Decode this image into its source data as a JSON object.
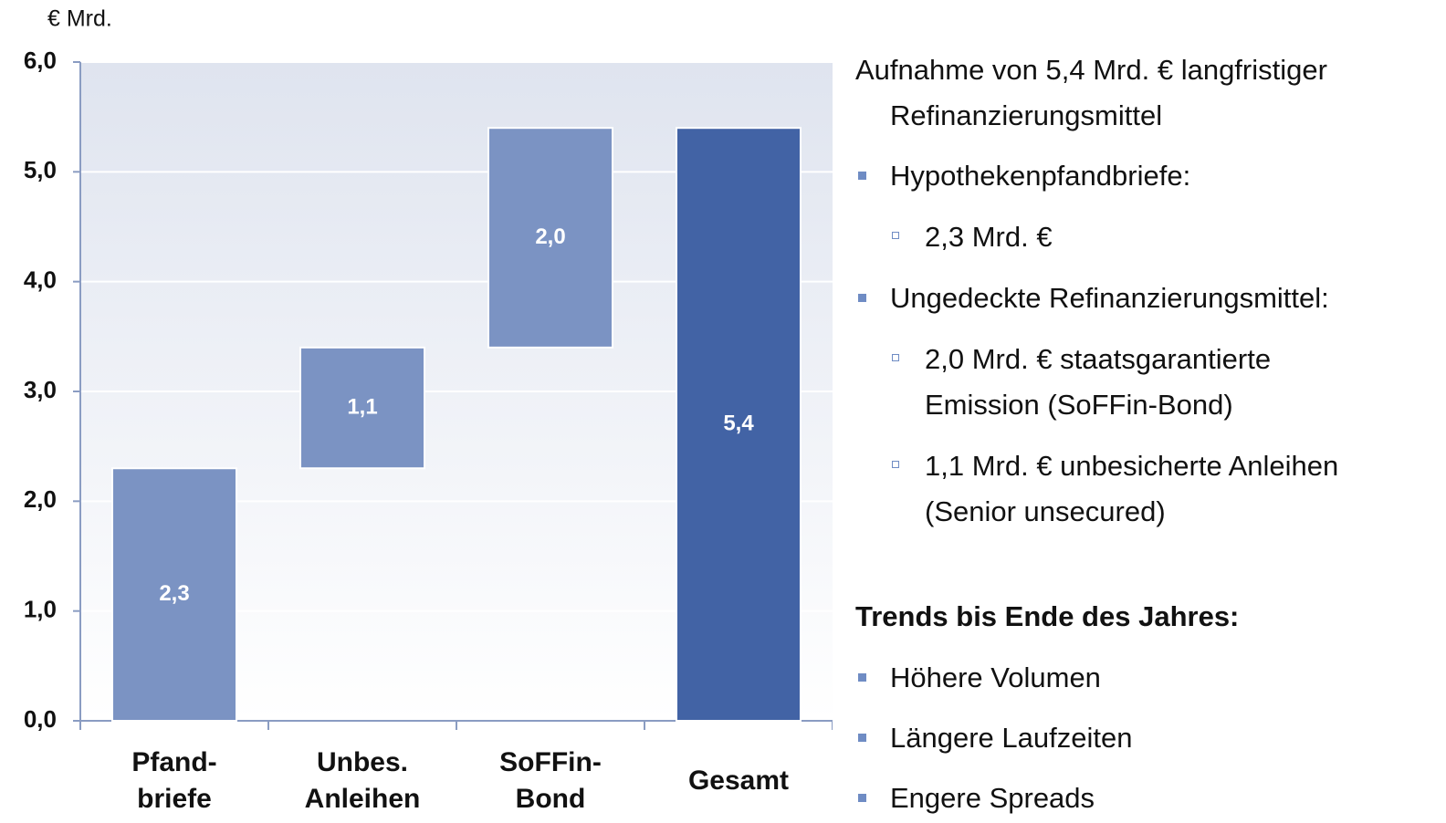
{
  "chart_data": {
    "type": "waterfall",
    "unit_label": "€ Mrd.",
    "categories": [
      [
        "Pfand-",
        "briefe"
      ],
      [
        "Unbes.",
        "Anleihen"
      ],
      [
        "SoFFin-",
        "Bond"
      ],
      [
        "Gesamt"
      ]
    ],
    "values": [
      2.3,
      1.1,
      2.0,
      5.4
    ],
    "value_labels": [
      "2,3",
      "1,1",
      "2,0",
      "5,4"
    ],
    "is_total": [
      false,
      false,
      false,
      true
    ],
    "colors": [
      "#7b93c3",
      "#7b93c3",
      "#7b93c3",
      "#4263a5"
    ],
    "ylim": [
      0,
      6
    ],
    "yticks": [
      {
        "value": 0,
        "label": "0,0"
      },
      {
        "value": 1,
        "label": "1,0"
      },
      {
        "value": 2,
        "label": "2,0"
      },
      {
        "value": 3,
        "label": "3,0"
      },
      {
        "value": 4,
        "label": "4,0"
      },
      {
        "value": 5,
        "label": "5,0"
      },
      {
        "value": 6,
        "label": "6,0"
      }
    ],
    "grid": true
  },
  "panel": {
    "intro": [
      "Aufnahme von 5,4 Mrd. € langfristiger",
      "Refinanzierungsmittel"
    ],
    "items": [
      {
        "level": 1,
        "lines": [
          "Hypothekenpfandbriefe:"
        ]
      },
      {
        "level": 2,
        "lines": [
          "2,3 Mrd. €"
        ]
      },
      {
        "level": 1,
        "lines": [
          "Ungedeckte Refinanzierungsmittel:"
        ]
      },
      {
        "level": 2,
        "lines": [
          "2,0 Mrd. € staatsgarantierte",
          "Emission (SoFFin-Bond)"
        ]
      },
      {
        "level": 2,
        "lines": [
          "1,1 Mrd. € unbesicherte Anleihen",
          "(Senior unsecured)"
        ]
      }
    ],
    "trends_title": "Trends bis Ende des Jahres:",
    "trends": [
      "Höhere Volumen",
      "Längere Laufzeiten",
      "Engere Spreads"
    ]
  }
}
